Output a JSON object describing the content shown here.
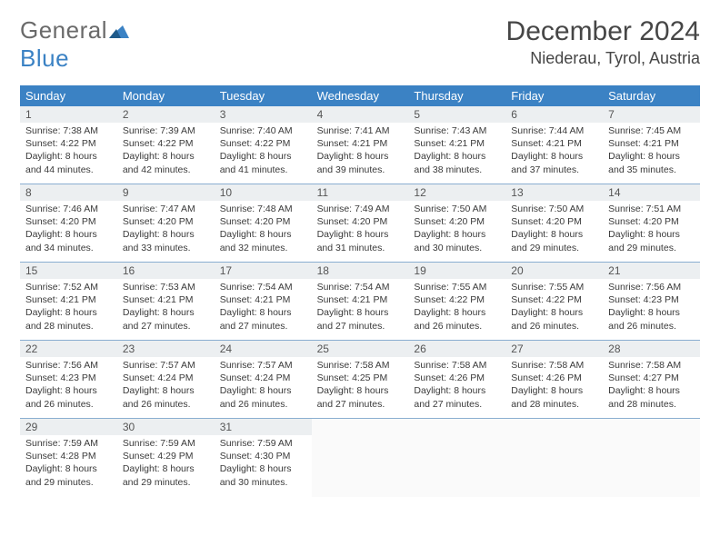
{
  "logo": {
    "word1": "General",
    "word2": "Blue"
  },
  "header": {
    "title": "December 2024",
    "location": "Niederau, Tyrol, Austria"
  },
  "styling": {
    "header_bg": "#3b82c4",
    "header_text": "#ffffff",
    "daynum_bg": "#eceff1",
    "row_sep": "#8aaed0",
    "title_color": "#464646",
    "logo_gray": "#6a6a6a",
    "logo_blue": "#3b82c4",
    "font_title": 30,
    "font_location": 18,
    "font_dayhead": 13,
    "font_daynum": 12,
    "font_body": 10.5
  },
  "day_headers": [
    "Sunday",
    "Monday",
    "Tuesday",
    "Wednesday",
    "Thursday",
    "Friday",
    "Saturday"
  ],
  "days": [
    {
      "n": "1",
      "sr": "7:38 AM",
      "ss": "4:22 PM",
      "dl": "8 hours and 44 minutes."
    },
    {
      "n": "2",
      "sr": "7:39 AM",
      "ss": "4:22 PM",
      "dl": "8 hours and 42 minutes."
    },
    {
      "n": "3",
      "sr": "7:40 AM",
      "ss": "4:22 PM",
      "dl": "8 hours and 41 minutes."
    },
    {
      "n": "4",
      "sr": "7:41 AM",
      "ss": "4:21 PM",
      "dl": "8 hours and 39 minutes."
    },
    {
      "n": "5",
      "sr": "7:43 AM",
      "ss": "4:21 PM",
      "dl": "8 hours and 38 minutes."
    },
    {
      "n": "6",
      "sr": "7:44 AM",
      "ss": "4:21 PM",
      "dl": "8 hours and 37 minutes."
    },
    {
      "n": "7",
      "sr": "7:45 AM",
      "ss": "4:21 PM",
      "dl": "8 hours and 35 minutes."
    },
    {
      "n": "8",
      "sr": "7:46 AM",
      "ss": "4:20 PM",
      "dl": "8 hours and 34 minutes."
    },
    {
      "n": "9",
      "sr": "7:47 AM",
      "ss": "4:20 PM",
      "dl": "8 hours and 33 minutes."
    },
    {
      "n": "10",
      "sr": "7:48 AM",
      "ss": "4:20 PM",
      "dl": "8 hours and 32 minutes."
    },
    {
      "n": "11",
      "sr": "7:49 AM",
      "ss": "4:20 PM",
      "dl": "8 hours and 31 minutes."
    },
    {
      "n": "12",
      "sr": "7:50 AM",
      "ss": "4:20 PM",
      "dl": "8 hours and 30 minutes."
    },
    {
      "n": "13",
      "sr": "7:50 AM",
      "ss": "4:20 PM",
      "dl": "8 hours and 29 minutes."
    },
    {
      "n": "14",
      "sr": "7:51 AM",
      "ss": "4:20 PM",
      "dl": "8 hours and 29 minutes."
    },
    {
      "n": "15",
      "sr": "7:52 AM",
      "ss": "4:21 PM",
      "dl": "8 hours and 28 minutes."
    },
    {
      "n": "16",
      "sr": "7:53 AM",
      "ss": "4:21 PM",
      "dl": "8 hours and 27 minutes."
    },
    {
      "n": "17",
      "sr": "7:54 AM",
      "ss": "4:21 PM",
      "dl": "8 hours and 27 minutes."
    },
    {
      "n": "18",
      "sr": "7:54 AM",
      "ss": "4:21 PM",
      "dl": "8 hours and 27 minutes."
    },
    {
      "n": "19",
      "sr": "7:55 AM",
      "ss": "4:22 PM",
      "dl": "8 hours and 26 minutes."
    },
    {
      "n": "20",
      "sr": "7:55 AM",
      "ss": "4:22 PM",
      "dl": "8 hours and 26 minutes."
    },
    {
      "n": "21",
      "sr": "7:56 AM",
      "ss": "4:23 PM",
      "dl": "8 hours and 26 minutes."
    },
    {
      "n": "22",
      "sr": "7:56 AM",
      "ss": "4:23 PM",
      "dl": "8 hours and 26 minutes."
    },
    {
      "n": "23",
      "sr": "7:57 AM",
      "ss": "4:24 PM",
      "dl": "8 hours and 26 minutes."
    },
    {
      "n": "24",
      "sr": "7:57 AM",
      "ss": "4:24 PM",
      "dl": "8 hours and 26 minutes."
    },
    {
      "n": "25",
      "sr": "7:58 AM",
      "ss": "4:25 PM",
      "dl": "8 hours and 27 minutes."
    },
    {
      "n": "26",
      "sr": "7:58 AM",
      "ss": "4:26 PM",
      "dl": "8 hours and 27 minutes."
    },
    {
      "n": "27",
      "sr": "7:58 AM",
      "ss": "4:26 PM",
      "dl": "8 hours and 28 minutes."
    },
    {
      "n": "28",
      "sr": "7:58 AM",
      "ss": "4:27 PM",
      "dl": "8 hours and 28 minutes."
    },
    {
      "n": "29",
      "sr": "7:59 AM",
      "ss": "4:28 PM",
      "dl": "8 hours and 29 minutes."
    },
    {
      "n": "30",
      "sr": "7:59 AM",
      "ss": "4:29 PM",
      "dl": "8 hours and 29 minutes."
    },
    {
      "n": "31",
      "sr": "7:59 AM",
      "ss": "4:30 PM",
      "dl": "8 hours and 30 minutes."
    }
  ],
  "labels": {
    "sunrise": "Sunrise:",
    "sunset": "Sunset:",
    "daylight": "Daylight:"
  },
  "grid": {
    "cols": 7,
    "rows": 5,
    "start_weekday_index": 0
  }
}
